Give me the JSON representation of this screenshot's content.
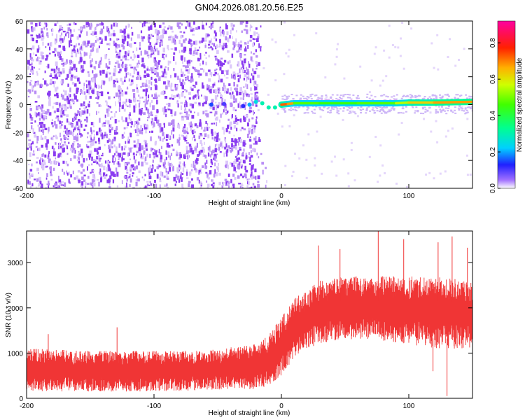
{
  "title": "GN04.2026.081.20.56.E25",
  "chart_data": [
    {
      "type": "heatmap",
      "title": "GN04.2026.081.20.56.E25",
      "xlabel": "Height of straight line (km)",
      "ylabel": "Frequency (Hz)",
      "xlim": [
        -200,
        150
      ],
      "ylim": [
        -60,
        60
      ],
      "xticks": [
        -200,
        -100,
        0,
        100
      ],
      "yticks": [
        60,
        40,
        20,
        0,
        -20,
        -40,
        -60
      ],
      "noise_region": {
        "x_from": -200,
        "x_to": -18,
        "description": "scattered low-amplitude energy (purple) across all frequencies"
      },
      "signal_track": [
        {
          "x": -55,
          "y": 0,
          "amp": 0.15
        },
        {
          "x": -45,
          "y": 0.5,
          "amp": 0.1
        },
        {
          "x": -30,
          "y": -1,
          "amp": 0.12
        },
        {
          "x": -25,
          "y": 0,
          "amp": 0.2
        },
        {
          "x": -20,
          "y": 2,
          "amp": 0.25
        },
        {
          "x": -15,
          "y": 1,
          "amp": 0.3
        },
        {
          "x": -10,
          "y": -2,
          "amp": 0.3
        },
        {
          "x": -5,
          "y": -2,
          "amp": 0.3
        },
        {
          "x": 0,
          "y": 0,
          "amp": 0.6
        },
        {
          "x": 5,
          "y": 0.5,
          "amp": 0.85
        },
        {
          "x": 10,
          "y": 1,
          "amp": 0.5
        },
        {
          "x": 30,
          "y": 1,
          "amp": 0.45
        },
        {
          "x": 60,
          "y": 1,
          "amp": 0.45
        },
        {
          "x": 90,
          "y": 1,
          "amp": 0.5
        },
        {
          "x": 100,
          "y": 1.5,
          "amp": 0.6
        },
        {
          "x": 120,
          "y": 1.5,
          "amp": 0.65
        },
        {
          "x": 150,
          "y": 2,
          "amp": 0.7
        }
      ],
      "colorbar": {
        "label": "Normalized spectral amplitude",
        "range": [
          0,
          0.92
        ],
        "ticks": [
          "0.0",
          "0.2",
          "0.4",
          "0.6",
          "0.8"
        ]
      }
    },
    {
      "type": "line",
      "xlabel": "Height of straight line (km)",
      "ylabel": "SNR (10 * v/v)",
      "xlim": [
        -200,
        150
      ],
      "ylim": [
        0,
        3700
      ],
      "xticks": [
        -200,
        -100,
        0,
        100
      ],
      "yticks": [
        0,
        1000,
        2000,
        3000
      ],
      "color": "#f03535",
      "series": [
        {
          "name": "SNR envelope",
          "x": [
            -200,
            -150,
            -100,
            -60,
            -20,
            -10,
            0,
            10,
            20,
            30,
            50,
            70,
            100,
            120,
            150
          ],
          "upper": [
            1100,
            1050,
            1050,
            1050,
            1200,
            1400,
            1800,
            2200,
            2400,
            2600,
            2700,
            2700,
            2700,
            2700,
            2600
          ],
          "lower": [
            150,
            150,
            150,
            180,
            200,
            250,
            500,
            900,
            1100,
            1200,
            1300,
            1300,
            1200,
            1100,
            1100
          ]
        }
      ],
      "peaks": [
        {
          "x": -183,
          "y": 1420
        },
        {
          "x": -129,
          "y": 1570
        },
        {
          "x": 29,
          "y": 3380
        },
        {
          "x": 46,
          "y": 3300
        },
        {
          "x": 76,
          "y": 3700
        },
        {
          "x": 96,
          "y": 3520
        },
        {
          "x": 123,
          "y": 3450
        },
        {
          "x": 134,
          "y": 3580
        },
        {
          "x": 146,
          "y": 3330
        }
      ],
      "dips": [
        {
          "x": 130,
          "y": 50
        },
        {
          "x": 119,
          "y": 600
        }
      ]
    }
  ]
}
